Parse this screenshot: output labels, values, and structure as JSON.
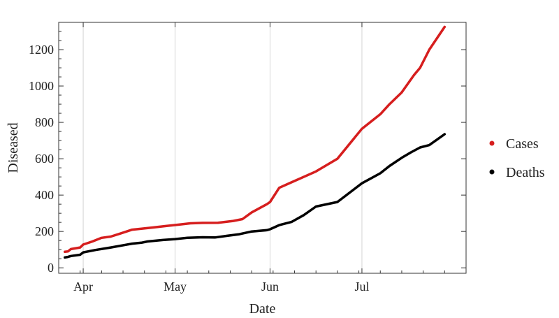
{
  "chart_data": {
    "type": "line",
    "title": "",
    "xlabel": "Date",
    "ylabel": "Diseased",
    "xlim": [
      "2020-03-24",
      "2020-08-04"
    ],
    "ylim": [
      -30,
      1350
    ],
    "x_ticks": [
      {
        "label": "Apr",
        "date": "2020-04-01"
      },
      {
        "label": "May",
        "date": "2020-05-01"
      },
      {
        "label": "Jun",
        "date": "2020-06-01"
      },
      {
        "label": "Jul",
        "date": "2020-07-01"
      }
    ],
    "y_ticks": [
      0,
      200,
      400,
      600,
      800,
      1000,
      1200
    ],
    "grid": "vertical at month ticks",
    "legend_position": "right",
    "series": [
      {
        "name": "Cases",
        "color": "#d61e1e",
        "points": [
          {
            "x": "2020-03-26",
            "y": 88
          },
          {
            "x": "2020-03-27",
            "y": 90
          },
          {
            "x": "2020-03-28",
            "y": 103
          },
          {
            "x": "2020-03-31",
            "y": 112
          },
          {
            "x": "2020-04-01",
            "y": 128
          },
          {
            "x": "2020-04-04",
            "y": 145
          },
          {
            "x": "2020-04-07",
            "y": 165
          },
          {
            "x": "2020-04-10",
            "y": 172
          },
          {
            "x": "2020-04-13",
            "y": 188
          },
          {
            "x": "2020-04-17",
            "y": 210
          },
          {
            "x": "2020-04-20",
            "y": 215
          },
          {
            "x": "2020-04-24",
            "y": 222
          },
          {
            "x": "2020-04-28",
            "y": 230
          },
          {
            "x": "2020-05-02",
            "y": 237
          },
          {
            "x": "2020-05-06",
            "y": 245
          },
          {
            "x": "2020-05-10",
            "y": 247
          },
          {
            "x": "2020-05-15",
            "y": 248
          },
          {
            "x": "2020-05-20",
            "y": 258
          },
          {
            "x": "2020-05-23",
            "y": 268
          },
          {
            "x": "2020-05-26",
            "y": 305
          },
          {
            "x": "2020-05-31",
            "y": 350
          },
          {
            "x": "2020-06-01",
            "y": 362
          },
          {
            "x": "2020-06-04",
            "y": 440
          },
          {
            "x": "2020-06-08",
            "y": 470
          },
          {
            "x": "2020-06-16",
            "y": 530
          },
          {
            "x": "2020-06-23",
            "y": 600
          },
          {
            "x": "2020-07-01",
            "y": 765
          },
          {
            "x": "2020-07-07",
            "y": 845
          },
          {
            "x": "2020-07-10",
            "y": 900
          },
          {
            "x": "2020-07-14",
            "y": 965
          },
          {
            "x": "2020-07-18",
            "y": 1060
          },
          {
            "x": "2020-07-20",
            "y": 1100
          },
          {
            "x": "2020-07-23",
            "y": 1200
          },
          {
            "x": "2020-07-28",
            "y": 1325
          }
        ]
      },
      {
        "name": "Deaths",
        "color": "#000000",
        "points": [
          {
            "x": "2020-03-26",
            "y": 57
          },
          {
            "x": "2020-03-27",
            "y": 60
          },
          {
            "x": "2020-03-28",
            "y": 65
          },
          {
            "x": "2020-03-31",
            "y": 72
          },
          {
            "x": "2020-04-01",
            "y": 85
          },
          {
            "x": "2020-04-05",
            "y": 98
          },
          {
            "x": "2020-04-10",
            "y": 112
          },
          {
            "x": "2020-04-15",
            "y": 127
          },
          {
            "x": "2020-04-17",
            "y": 133
          },
          {
            "x": "2020-04-20",
            "y": 138
          },
          {
            "x": "2020-04-22",
            "y": 145
          },
          {
            "x": "2020-04-27",
            "y": 153
          },
          {
            "x": "2020-05-01",
            "y": 158
          },
          {
            "x": "2020-05-05",
            "y": 165
          },
          {
            "x": "2020-05-10",
            "y": 168
          },
          {
            "x": "2020-05-14",
            "y": 167
          },
          {
            "x": "2020-05-18",
            "y": 176
          },
          {
            "x": "2020-05-22",
            "y": 185
          },
          {
            "x": "2020-05-26",
            "y": 200
          },
          {
            "x": "2020-05-31",
            "y": 207
          },
          {
            "x": "2020-06-01",
            "y": 212
          },
          {
            "x": "2020-06-04",
            "y": 235
          },
          {
            "x": "2020-06-08",
            "y": 252
          },
          {
            "x": "2020-06-12",
            "y": 290
          },
          {
            "x": "2020-06-16",
            "y": 337
          },
          {
            "x": "2020-06-23",
            "y": 362
          },
          {
            "x": "2020-07-01",
            "y": 465
          },
          {
            "x": "2020-07-07",
            "y": 520
          },
          {
            "x": "2020-07-10",
            "y": 560
          },
          {
            "x": "2020-07-14",
            "y": 605
          },
          {
            "x": "2020-07-17",
            "y": 635
          },
          {
            "x": "2020-07-20",
            "y": 662
          },
          {
            "x": "2020-07-23",
            "y": 675
          },
          {
            "x": "2020-07-28",
            "y": 735
          }
        ]
      }
    ]
  }
}
